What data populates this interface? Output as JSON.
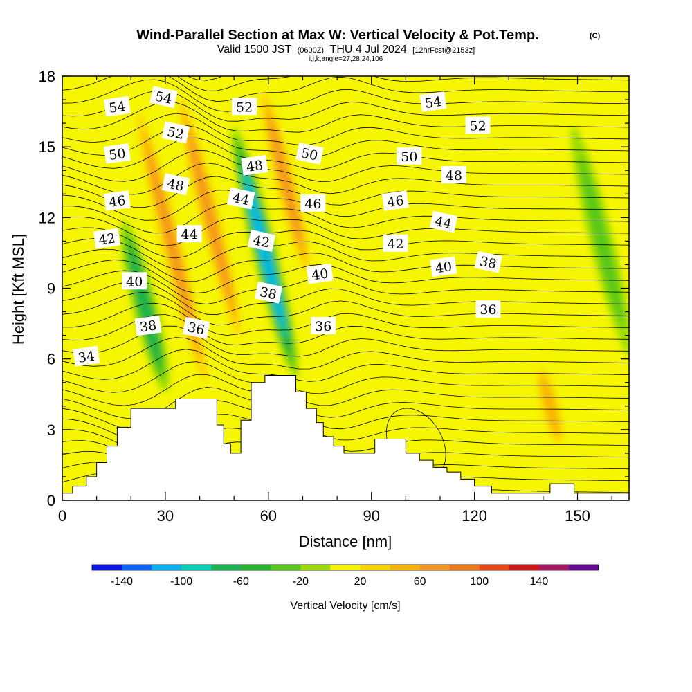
{
  "header": {
    "title": "Wind-Parallel Section at Max W: Vertical Velocity & Pot.Temp.",
    "copyright": "(C)",
    "valid_prefix": "Valid 1500 JST",
    "valid_utc": "(0600Z)",
    "valid_date": "THU 4 Jul 2024",
    "forecast": "[12hrFcst@2153z]",
    "grid_info": "i,j,k,angle=27,28,24,106"
  },
  "chart_data": {
    "type": "heatmap",
    "title": "Wind-Parallel Section at Max W: Vertical Velocity & Pot.Temp.",
    "xlabel": "Distance [nm]",
    "ylabel": "Height [Kft MSL]",
    "xlim": [
      0,
      165
    ],
    "ylim": [
      0,
      18
    ],
    "xticks": [
      0,
      30,
      60,
      90,
      120,
      150
    ],
    "yticks": [
      0,
      3,
      6,
      9,
      12,
      15,
      18
    ],
    "colorbar": {
      "label": "Vertical Velocity [cm/s]",
      "tick_labels": [
        "-140",
        "-100",
        "-60",
        "-20",
        "20",
        "60",
        "100",
        "140"
      ],
      "levels": [
        -160,
        -140,
        -120,
        -100,
        -80,
        -60,
        -40,
        -20,
        0,
        20,
        40,
        60,
        80,
        100,
        120,
        140,
        160
      ],
      "colors": [
        "#0a14e6",
        "#0a64ff",
        "#00b4f0",
        "#00d2b4",
        "#14b450",
        "#24b42c",
        "#56c818",
        "#9adc00",
        "#f6f600",
        "#fcd200",
        "#f8b400",
        "#f6961e",
        "#f07814",
        "#eb4614",
        "#d21414",
        "#aa1464",
        "#640a96"
      ]
    },
    "vertical_velocity_features": [
      {
        "kind": "updraft",
        "x": 32,
        "ymin": 4,
        "ymax": 17.5,
        "peak_cms": 80
      },
      {
        "kind": "updraft",
        "x": 43,
        "ymin": 6,
        "ymax": 18,
        "peak_cms": 70
      },
      {
        "kind": "updraft",
        "x": 65,
        "ymin": 9,
        "ymax": 18,
        "peak_cms": 70
      },
      {
        "kind": "updraft",
        "x": 142,
        "ymin": 2,
        "ymax": 6,
        "peak_cms": 60
      },
      {
        "kind": "downdraft",
        "x": 24,
        "ymin": 4.5,
        "ymax": 12,
        "peak_cms": -80
      },
      {
        "kind": "downdraft",
        "x": 59,
        "ymin": 5,
        "ymax": 16,
        "peak_cms": -120
      },
      {
        "kind": "downdraft",
        "x": 157,
        "ymin": 6,
        "ymax": 16,
        "peak_cms": -40
      }
    ],
    "theta_contour_labels": [
      {
        "label": "54",
        "x": 16,
        "y": 16.7
      },
      {
        "label": "54",
        "x": 29.5,
        "y": 17.1
      },
      {
        "label": "52",
        "x": 53,
        "y": 16.7
      },
      {
        "label": "54",
        "x": 108,
        "y": 16.9
      },
      {
        "label": "52",
        "x": 33,
        "y": 15.6
      },
      {
        "label": "52",
        "x": 121,
        "y": 15.9
      },
      {
        "label": "50",
        "x": 16,
        "y": 14.7
      },
      {
        "label": "50",
        "x": 72,
        "y": 14.7
      },
      {
        "label": "50",
        "x": 101,
        "y": 14.6
      },
      {
        "label": "48",
        "x": 56,
        "y": 14.2
      },
      {
        "label": "48",
        "x": 33,
        "y": 13.4
      },
      {
        "label": "48",
        "x": 114,
        "y": 13.8
      },
      {
        "label": "46",
        "x": 16,
        "y": 12.7
      },
      {
        "label": "44",
        "x": 52,
        "y": 12.8
      },
      {
        "label": "46",
        "x": 73,
        "y": 12.6
      },
      {
        "label": "46",
        "x": 97,
        "y": 12.7
      },
      {
        "label": "44",
        "x": 111,
        "y": 11.8
      },
      {
        "label": "44",
        "x": 37,
        "y": 11.3
      },
      {
        "label": "42",
        "x": 13,
        "y": 11.1
      },
      {
        "label": "42",
        "x": 58,
        "y": 11.0
      },
      {
        "label": "42",
        "x": 97,
        "y": 10.9
      },
      {
        "label": "40",
        "x": 111,
        "y": 9.9
      },
      {
        "label": "38",
        "x": 124,
        "y": 10.1
      },
      {
        "label": "40",
        "x": 21,
        "y": 9.3
      },
      {
        "label": "40",
        "x": 75,
        "y": 9.6
      },
      {
        "label": "38",
        "x": 60,
        "y": 8.8
      },
      {
        "label": "36",
        "x": 124,
        "y": 8.1
      },
      {
        "label": "38",
        "x": 25,
        "y": 7.4
      },
      {
        "label": "36",
        "x": 39,
        "y": 7.3
      },
      {
        "label": "36",
        "x": 76,
        "y": 7.4
      },
      {
        "label": "34",
        "x": 7,
        "y": 6.1
      }
    ],
    "terrain_profile": [
      [
        0,
        0.3
      ],
      [
        3,
        0.6
      ],
      [
        7,
        1.0
      ],
      [
        10,
        1.6
      ],
      [
        13,
        2.3
      ],
      [
        16,
        3.1
      ],
      [
        20,
        3.9
      ],
      [
        27,
        3.9
      ],
      [
        33,
        4.3
      ],
      [
        42,
        4.3
      ],
      [
        45,
        3.2
      ],
      [
        47,
        2.4
      ],
      [
        49,
        2.0
      ],
      [
        52,
        3.4
      ],
      [
        55,
        5.0
      ],
      [
        59,
        5.3
      ],
      [
        65,
        5.3
      ],
      [
        68,
        4.6
      ],
      [
        71,
        3.9
      ],
      [
        74,
        3.3
      ],
      [
        76,
        2.7
      ],
      [
        79,
        2.3
      ],
      [
        82,
        2.0
      ],
      [
        88,
        2.0
      ],
      [
        91,
        2.6
      ],
      [
        96,
        2.6
      ],
      [
        100,
        2.0
      ],
      [
        104,
        1.7
      ],
      [
        108,
        1.4
      ],
      [
        112,
        1.2
      ],
      [
        116,
        0.9
      ],
      [
        120,
        0.6
      ],
      [
        125,
        0.3
      ],
      [
        140,
        0.3
      ],
      [
        142,
        0.7
      ],
      [
        147,
        0.7
      ],
      [
        149,
        0.3
      ],
      [
        165,
        0.3
      ]
    ]
  }
}
